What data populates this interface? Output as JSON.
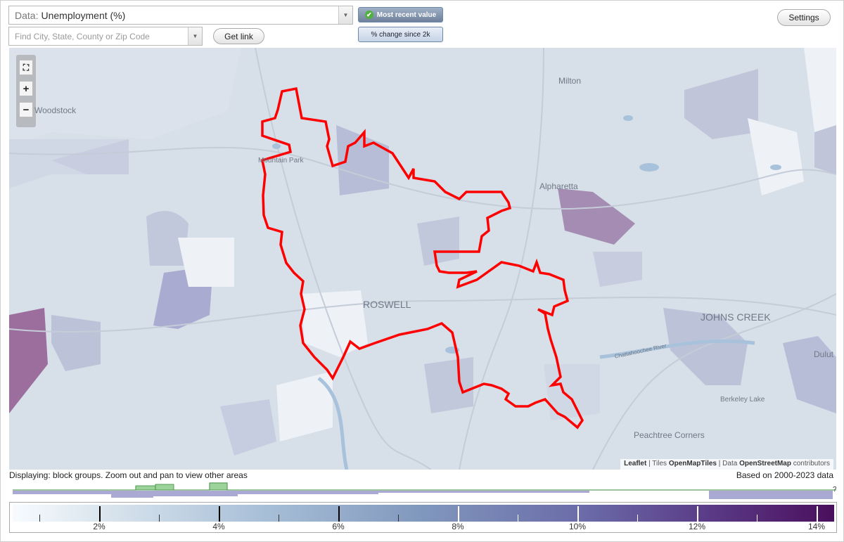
{
  "controls": {
    "data_prefix": "Data:",
    "data_value": "Unemployment (%)",
    "search_placeholder": "Find City, State, County or Zip Code",
    "get_link": "Get link",
    "most_recent": "Most recent value",
    "pct_change": "% change since 2k",
    "settings": "Settings"
  },
  "map": {
    "places": {
      "woodstock": "Woodstock",
      "milton": "Milton",
      "mountain_park": "Mountain Park",
      "alpharetta": "Alpharetta",
      "roswell": "ROSWELL",
      "johns_creek": "JOHNS CREEK",
      "duluth": "Dulut",
      "berkeley_lake": "Berkeley Lake",
      "peachtree_corners": "Peachtree Corners",
      "river": "Chattahoochee River"
    },
    "boundary_color": "#ff0000",
    "zoom": {
      "fit": "⛶",
      "in": "+",
      "out": "−"
    },
    "attribution": {
      "leaflet": "Leaflet",
      "sep1": "| Tiles",
      "tiles": "OpenMapTiles",
      "sep2": "| Data",
      "data": "OpenStreetMap",
      "contributors": "contributors"
    }
  },
  "status": {
    "displaying": "Displaying: block groups. Zoom out and pan to view other areas",
    "based_on": "Based on 2000-2023 data"
  },
  "legend": {
    "labels": [
      "2%",
      "4%",
      "6%",
      "8%",
      "10%",
      "12%",
      "14%"
    ],
    "unknown": "?",
    "colors": {
      "low": "#f7fbff",
      "mid": "#8097bd",
      "high": "#4a0f5c"
    }
  }
}
